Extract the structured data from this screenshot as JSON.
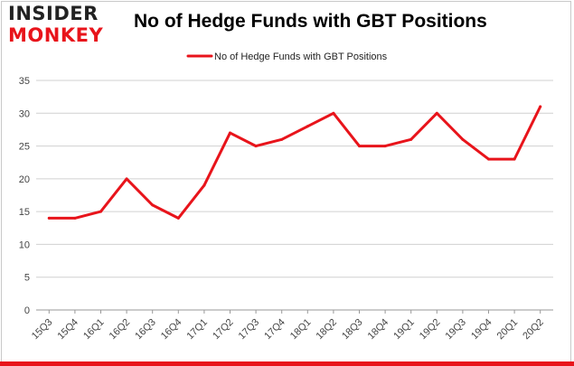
{
  "brand": {
    "logo_top": "INSIDER",
    "logo_bottom": "MONKEY"
  },
  "chart_data": {
    "type": "line",
    "title": "No of Hedge Funds with GBT Positions",
    "categories": [
      "15Q3",
      "15Q4",
      "16Q1",
      "16Q2",
      "16Q3",
      "16Q4",
      "17Q1",
      "17Q2",
      "17Q3",
      "17Q4",
      "18Q1",
      "18Q2",
      "18Q3",
      "18Q4",
      "19Q1",
      "19Q2",
      "19Q3",
      "19Q4",
      "20Q1",
      "20Q2"
    ],
    "series": [
      {
        "name": "No of Hedge Funds with GBT Positions",
        "values": [
          14,
          14,
          15,
          20,
          16,
          14,
          19,
          27,
          25,
          26,
          28,
          30,
          25,
          25,
          26,
          30,
          26,
          23,
          23,
          31
        ]
      }
    ],
    "ylim": [
      0,
      35
    ],
    "yticks": [
      0,
      5,
      10,
      15,
      20,
      25,
      30,
      35
    ],
    "grid": true,
    "legend": "top-center",
    "colors": {
      "line": "#e8141b",
      "grid": "#d0d0d0",
      "brand_red": "#e8141b"
    }
  }
}
